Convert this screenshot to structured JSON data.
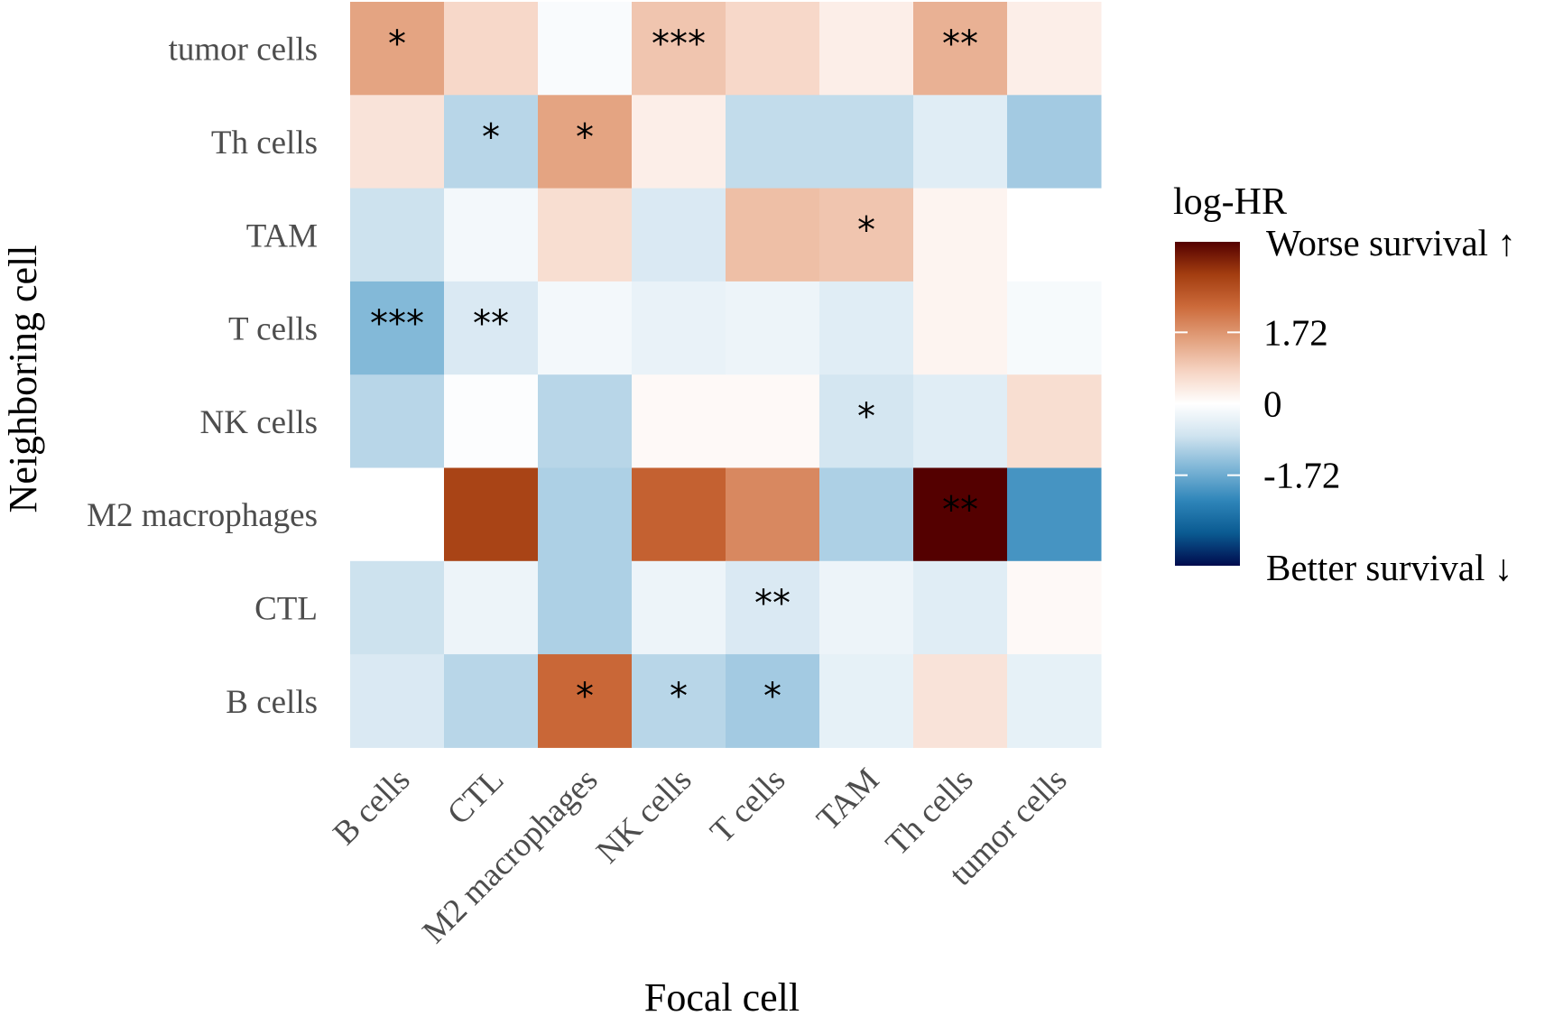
{
  "chart_data": {
    "type": "heatmap",
    "xlabel": "Focal cell",
    "ylabel": "Neighboring cell",
    "x_categories": [
      "B cells",
      "CTL",
      "M2 macrophages",
      "NK cells",
      "T cells",
      "TAM",
      "Th cells",
      "tumor cells"
    ],
    "y_categories": [
      "tumor cells",
      "Th cells",
      "TAM",
      "T cells",
      "NK cells",
      "M2 macrophages",
      "CTL",
      "B cells"
    ],
    "values": [
      [
        1.5,
        0.7,
        -0.1,
        1.0,
        0.7,
        0.3,
        1.3,
        0.3
      ],
      [
        0.5,
        -1.0,
        1.5,
        0.3,
        -0.9,
        -0.9,
        -0.5,
        -1.2
      ],
      [
        -0.8,
        -0.2,
        0.6,
        -0.6,
        1.1,
        1.0,
        0.2,
        0.0
      ],
      [
        -1.5,
        -0.6,
        -0.2,
        -0.35,
        -0.3,
        -0.5,
        0.2,
        -0.15
      ],
      [
        -1.0,
        -0.05,
        -1.0,
        0.1,
        0.1,
        -0.7,
        -0.5,
        0.6
      ],
      [
        0.0,
        3.0,
        -1.1,
        2.5,
        1.9,
        -1.1,
        4.5,
        -2.1
      ],
      [
        -0.8,
        -0.3,
        -1.1,
        -0.3,
        -0.6,
        -0.3,
        -0.5,
        0.1
      ],
      [
        -0.6,
        -1.0,
        2.4,
        -1.0,
        -1.2,
        -0.4,
        0.5,
        -0.4
      ]
    ],
    "significance": [
      [
        "*",
        "",
        "",
        "***",
        "",
        "",
        "**",
        ""
      ],
      [
        "",
        "*",
        "*",
        "",
        "",
        "",
        "",
        ""
      ],
      [
        "",
        "",
        "",
        "",
        "",
        "*",
        "",
        ""
      ],
      [
        "***",
        "**",
        "",
        "",
        "",
        "",
        "",
        ""
      ],
      [
        "",
        "",
        "",
        "",
        "",
        "*",
        "",
        ""
      ],
      [
        "",
        "",
        "",
        "",
        "",
        "",
        "**",
        ""
      ],
      [
        "",
        "",
        "",
        "",
        "**",
        "",
        "",
        ""
      ],
      [
        "",
        "",
        "*",
        "*",
        "*",
        "",
        "",
        ""
      ]
    ],
    "legend": {
      "title": "log-HR",
      "top_label": "Worse survival ↑",
      "bottom_label": "Better survival ↓",
      "ticks": [
        1.72,
        0,
        -1.72
      ],
      "tick_labels": [
        "1.72",
        "0",
        "-1.72"
      ],
      "range": [
        -3.9,
        3.9
      ],
      "placement": "right"
    },
    "colors": {
      "palette": [
        "#053061",
        "#2166ac",
        "#4393c3",
        "#92c5de",
        "#d1e5f0",
        "#f7f7f7",
        "#fddbc7",
        "#f4a582",
        "#d6604d",
        "#b2182b",
        "#67001f"
      ],
      "scale_stops": [
        "#000b4d",
        "#0a5a91",
        "#2e85b9",
        "#7db5d6",
        "#cfe3ef",
        "#ffffff",
        "#f6d4c3",
        "#e2a07d",
        "#cc6a3a",
        "#a33d10",
        "#540000"
      ]
    }
  }
}
